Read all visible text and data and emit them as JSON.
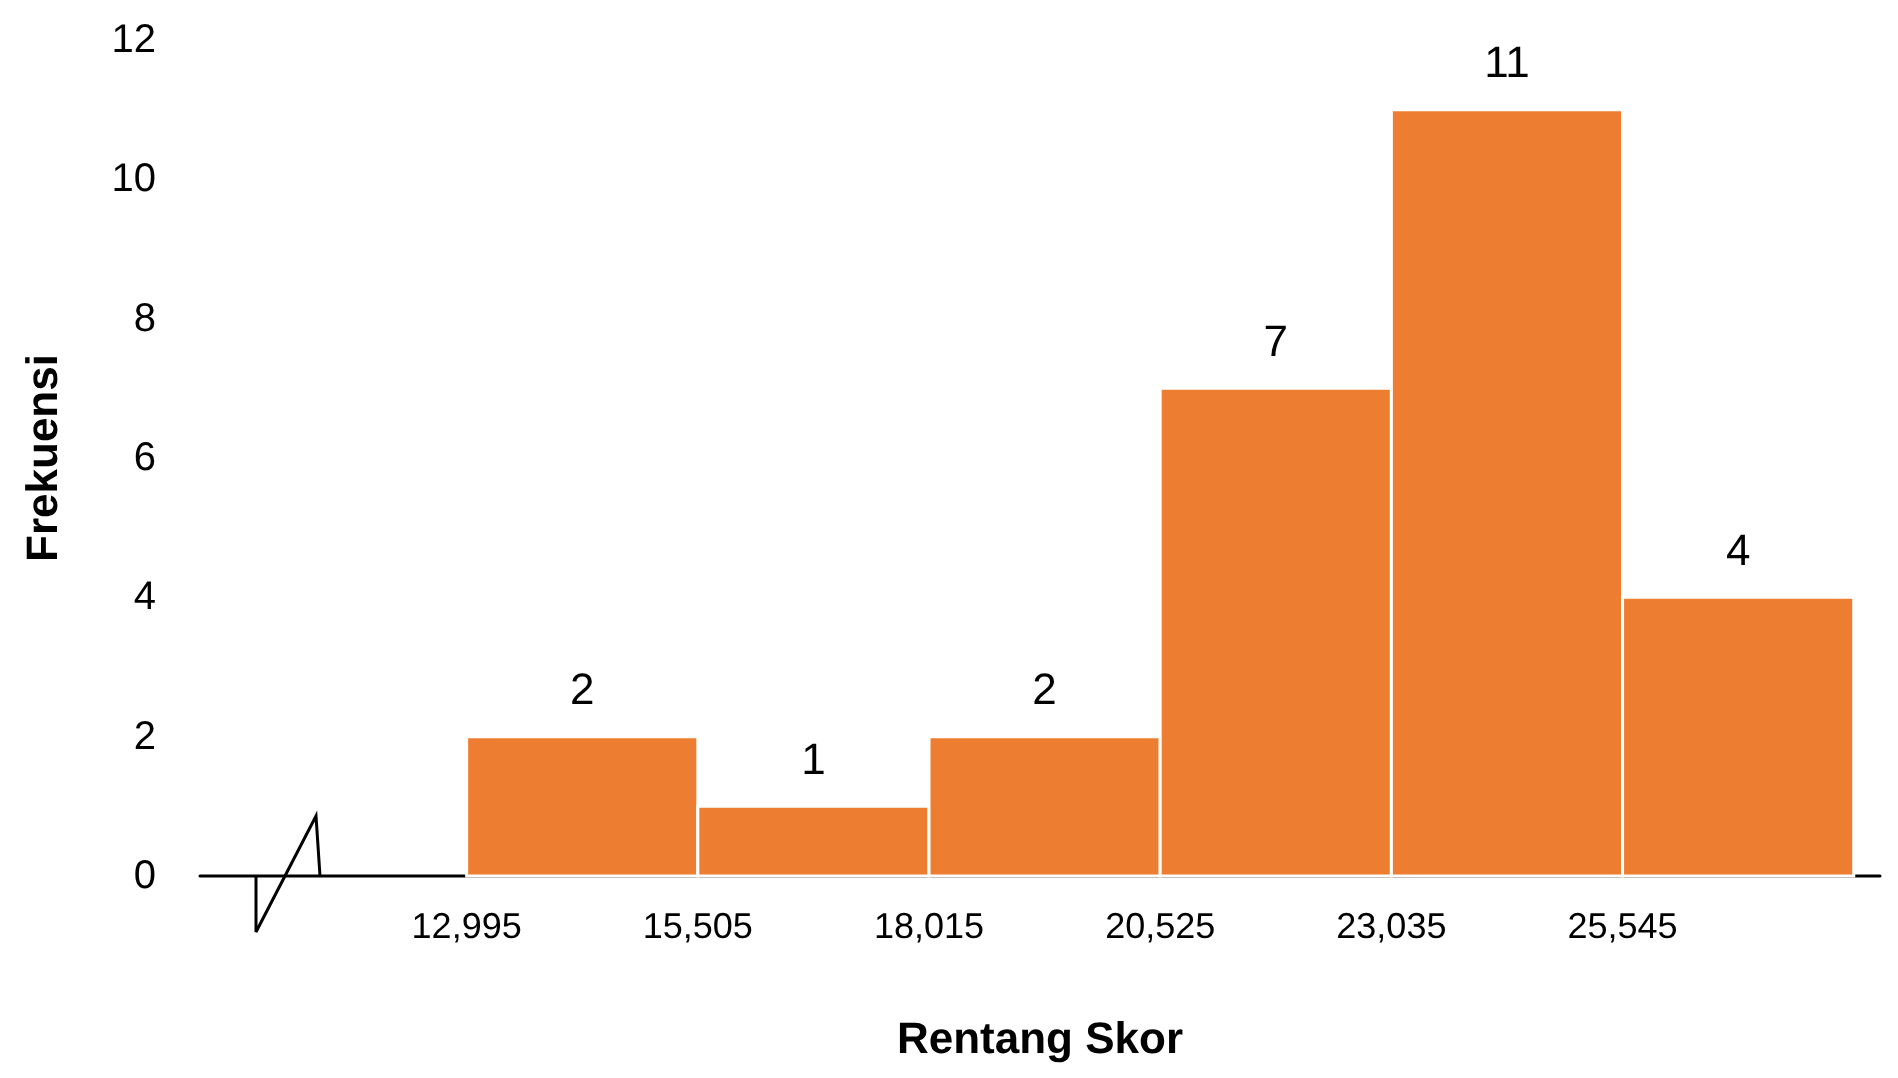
{
  "chart_data": {
    "type": "histogram",
    "xlabel": "Rentang Skor",
    "ylabel": "Frekuensi",
    "bins": [
      12995,
      15505,
      18015,
      20525,
      23035,
      25545,
      28055
    ],
    "values": [
      2,
      1,
      2,
      7,
      11,
      4
    ],
    "color": "#ed7d31",
    "xlim": [
      10100,
      28340
    ],
    "xticks": [
      {
        "value": 12995,
        "label": "12,995"
      },
      {
        "value": 15505,
        "label": "15,505"
      },
      {
        "value": 18015,
        "label": "18,015"
      },
      {
        "value": 20525,
        "label": "20,525"
      },
      {
        "value": 23035,
        "label": "23,035"
      },
      {
        "value": 25545,
        "label": "25,545"
      }
    ],
    "ylim": [
      0,
      12
    ],
    "yticks": [
      0,
      2,
      4,
      6,
      8,
      10,
      12
    ],
    "data_labels": true,
    "grid": false
  }
}
